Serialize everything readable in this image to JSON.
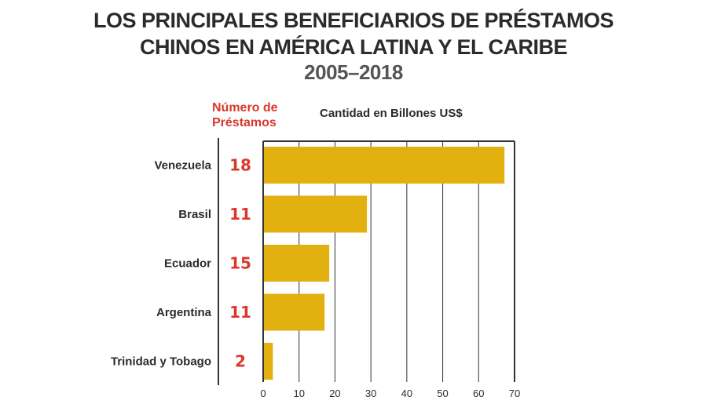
{
  "title_line1": "LOS PRINCIPALES BENEFICIARIOS DE PRÉSTAMOS",
  "title_line2": "CHINOS EN AMÉRICA LATINA Y EL CARIBE",
  "subtitle": "2005–2018",
  "loans_column_header": "Número de Préstamos",
  "amount_axis_label": "Cantidad en Billones US$",
  "colors": {
    "bar": "#e2b00f",
    "loans": "#d8392b",
    "text": "#2b2b2b"
  },
  "chart_data": {
    "type": "bar",
    "orientation": "horizontal",
    "title": "LOS PRINCIPALES BENEFICIARIOS DE PRÉSTAMOS CHINOS EN AMÉRICA LATINA Y EL CARIBE",
    "subtitle": "2005–2018",
    "xlabel": "Cantidad en Billones US$",
    "categories": [
      "Venezuela",
      "Brasil",
      "Ecuador",
      "Argentina",
      "Trinidad y Tobago"
    ],
    "values": [
      67.2,
      28.9,
      18.4,
      17.1,
      2.7
    ],
    "loan_counts": [
      "18",
      "11",
      "15",
      "11",
      "2"
    ],
    "xlim": [
      0,
      70
    ],
    "xticks": [
      "0",
      "10",
      "20",
      "30",
      "40",
      "50",
      "60",
      "70"
    ],
    "grid": true
  }
}
